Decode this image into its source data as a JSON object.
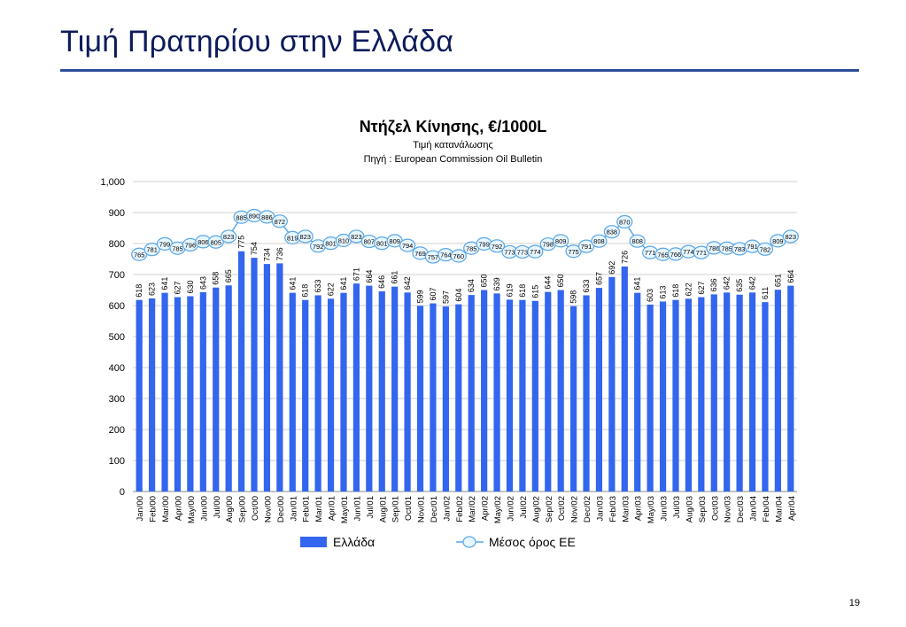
{
  "slide": {
    "title": "Τιμή Πρατηρίου στην Ελλάδα",
    "page_number": "19"
  },
  "colors": {
    "bar": "#3366ee",
    "line": "#5aa7e6",
    "marker_fill": "#e8f6ff",
    "title_rule": "#2c4e9a",
    "title_text": "#0d1b5c"
  },
  "chart_data": {
    "type": "bar",
    "title": "Ντήζελ Κίνησης, €/1000L",
    "subtitle": "Τιμή κατανάλωσης",
    "source": "Πηγή : European Commission Oil Bulletin",
    "categories": [
      "Jan/00",
      "Feb/00",
      "Mar/00",
      "Apr/00",
      "May/00",
      "Jun/00",
      "Jul/00",
      "Aug/00",
      "Sep/00",
      "Oct/00",
      "Nov/00",
      "Dec/00",
      "Jan/01",
      "Feb/01",
      "Mar/01",
      "Apr/01",
      "May/01",
      "Jun/01",
      "Jul/01",
      "Aug/01",
      "Sep/01",
      "Oct/01",
      "Nov/01",
      "Dec/01",
      "Jan/02",
      "Feb/02",
      "Mar/02",
      "Apr/02",
      "May/02",
      "Jun/02",
      "Jul/02",
      "Aug/02",
      "Sep/02",
      "Oct/02",
      "Nov/02",
      "Dec/02",
      "Jan/03",
      "Feb/03",
      "Mar/03",
      "Apr/03",
      "May/03",
      "Jun/03",
      "Jul/03",
      "Aug/03",
      "Sep/03",
      "Oct/03",
      "Nov/03",
      "Dec/03",
      "Jan/04",
      "Feb/04",
      "Mar/04",
      "Apr/04"
    ],
    "series": [
      {
        "name": "Ελλάδα",
        "kind": "bar",
        "values": [
          618,
          623,
          641,
          627,
          630,
          643,
          658,
          665,
          775,
          754,
          734,
          736,
          641,
          618,
          633,
          622,
          641,
          671,
          664,
          646,
          661,
          642,
          599,
          607,
          597,
          604,
          634,
          650,
          639,
          619,
          618,
          615,
          644,
          650,
          598,
          633,
          657,
          692,
          726,
          641,
          603,
          613,
          618,
          622,
          627,
          636,
          642,
          635,
          642,
          611,
          651,
          664
        ]
      },
      {
        "name": "Μέσος όρος ΕΕ",
        "kind": "line",
        "values": [
          765,
          781,
          799,
          785,
          796,
          806,
          805,
          823,
          885,
          890,
          886,
          872,
          819,
          823,
          792,
          801,
          810,
          823,
          807,
          801,
          809,
          794,
          769,
          757,
          764,
          760,
          785,
          799,
          792,
          773,
          773,
          774,
          798,
          809,
          775,
          791,
          808,
          838,
          870,
          808,
          771,
          765,
          766,
          774,
          771,
          786,
          785,
          783,
          791,
          782,
          809,
          823
        ]
      }
    ],
    "ylim": [
      0,
      1000
    ],
    "yticks": [
      "0",
      "100",
      "200",
      "300",
      "400",
      "500",
      "600",
      "700",
      "800",
      "900",
      "1,000"
    ],
    "grid": true,
    "legend_position": "bottom"
  }
}
